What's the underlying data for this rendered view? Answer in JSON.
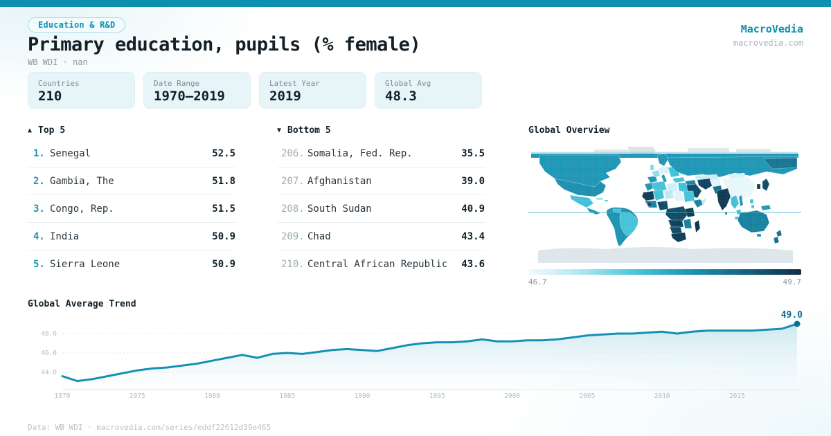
{
  "header": {
    "badge": "Education & R&D",
    "title": "Primary education, pupils (% female)",
    "subtitle": "WB WDI · nan",
    "brand": "MacroVedia",
    "brand_url": "macrovedia.com"
  },
  "stats": [
    {
      "label": "Countries",
      "value": "210"
    },
    {
      "label": "Date Range",
      "value": "1970—2019"
    },
    {
      "label": "Latest Year",
      "value": "2019"
    },
    {
      "label": "Global Avg",
      "value": "48.3"
    }
  ],
  "top5": {
    "arrow": "▲",
    "title": "Top 5",
    "rows": [
      {
        "rank": "1.",
        "name": "Senegal",
        "value": "52.5"
      },
      {
        "rank": "2.",
        "name": "Gambia, The",
        "value": "51.8"
      },
      {
        "rank": "3.",
        "name": "Congo, Rep.",
        "value": "51.5"
      },
      {
        "rank": "4.",
        "name": "India",
        "value": "50.9"
      },
      {
        "rank": "5.",
        "name": "Sierra Leone",
        "value": "50.9"
      }
    ]
  },
  "bottom5": {
    "arrow": "▼",
    "title": "Bottom 5",
    "rows": [
      {
        "rank": "206.",
        "name": "Somalia, Fed. Rep.",
        "value": "35.5"
      },
      {
        "rank": "207.",
        "name": "Afghanistan",
        "value": "39.0"
      },
      {
        "rank": "208.",
        "name": "South Sudan",
        "value": "40.9"
      },
      {
        "rank": "209.",
        "name": "Chad",
        "value": "43.4"
      },
      {
        "rank": "210.",
        "name": "Central African Republic",
        "value": "43.6"
      }
    ]
  },
  "map": {
    "title": "Global Overview",
    "legend_min": "46.7",
    "legend_max": "49.7",
    "gradient": [
      "#f2fbfd",
      "#aee5f0",
      "#45c3da",
      "#1b93b2",
      "#14607f",
      "#112f44"
    ]
  },
  "trend": {
    "title": "Global Average Trend"
  },
  "footer": {
    "text": "Data: WB WDI · macrovedia.com/series/eddf22612d39e465"
  },
  "accent_colors": {
    "teal": "#0d90ae",
    "teal_dark": "#0e6e90",
    "line": "#1590b2"
  },
  "chart_data": [
    {
      "type": "line",
      "title": "Global Average Trend",
      "x": [
        1970,
        1971,
        1972,
        1973,
        1974,
        1975,
        1976,
        1977,
        1978,
        1979,
        1980,
        1981,
        1982,
        1983,
        1984,
        1985,
        1986,
        1987,
        1988,
        1989,
        1990,
        1991,
        1992,
        1993,
        1994,
        1995,
        1996,
        1997,
        1998,
        1999,
        2000,
        2001,
        2002,
        2003,
        2004,
        2005,
        2006,
        2007,
        2008,
        2009,
        2010,
        2011,
        2012,
        2013,
        2014,
        2015,
        2016,
        2017,
        2018,
        2019
      ],
      "values": [
        43.6,
        43.1,
        43.3,
        43.6,
        43.9,
        44.2,
        44.4,
        44.5,
        44.7,
        44.9,
        45.2,
        45.5,
        45.8,
        45.5,
        45.9,
        46.0,
        45.9,
        46.1,
        46.3,
        46.4,
        46.3,
        46.2,
        46.5,
        46.8,
        47.0,
        47.1,
        47.1,
        47.2,
        47.4,
        47.2,
        47.2,
        47.3,
        47.3,
        47.4,
        47.6,
        47.8,
        47.9,
        48.0,
        48.0,
        48.1,
        48.2,
        48.0,
        48.2,
        48.3,
        48.3,
        48.3,
        48.3,
        48.4,
        48.5,
        49.0
      ],
      "xlabel": "",
      "ylabel": "",
      "yticks": [
        44.0,
        46.0,
        48.0
      ],
      "xticks": [
        1970,
        1975,
        1980,
        1985,
        1990,
        1995,
        2000,
        2005,
        2010,
        2015
      ],
      "ylim": [
        42.3,
        49.6
      ],
      "xlim": [
        1970,
        2019
      ],
      "grid": "horizontal-dashed",
      "legend_position": "none",
      "line_color": "#1590b2",
      "end_point_label": "49.0"
    },
    {
      "type": "heatmap",
      "title": "Global Overview",
      "subtitle": "world choropleth of latest values",
      "colorbar_range": [
        46.7,
        49.7
      ],
      "known_values": {
        "Senegal": 52.5,
        "Gambia, The": 51.8,
        "Congo, Rep.": 51.5,
        "India": 50.9,
        "Sierra Leone": 50.9,
        "Somalia, Fed. Rep.": 35.5,
        "Afghanistan": 39.0,
        "South Sudan": 40.9,
        "Chad": 43.4,
        "Central African Republic": 43.6
      }
    }
  ]
}
